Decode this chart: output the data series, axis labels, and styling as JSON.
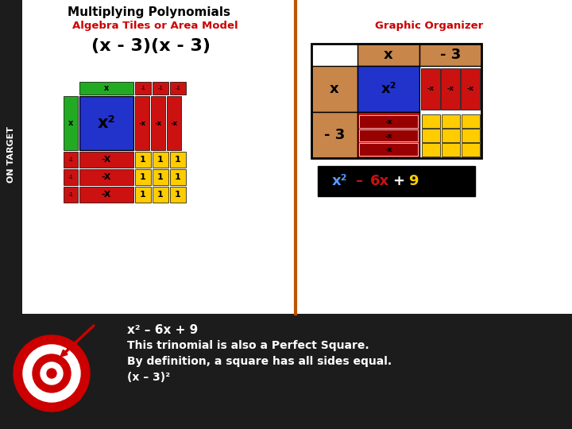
{
  "bg_color": "#1c1c1c",
  "white_area_color": "#ffffff",
  "title": "Multiplying Polynomials",
  "subtitle_left": "Algebra Tiles or Area Model",
  "subtitle_right": "Graphic Organizer",
  "expression": "(x - 3)(x - 3)",
  "bottom_text_line1": "x² – 6x + 9",
  "bottom_text_line2": "This trinomial is also a Perfect Square.",
  "bottom_text_line3": "By definition, a square has all sides equal.",
  "bottom_text_line4": "(x – 3)²",
  "colors": {
    "green": "#22aa22",
    "blue": "#2233cc",
    "red": "#cc1111",
    "yellow": "#ffcc00",
    "brown": "#c8864a",
    "black": "#000000",
    "white": "#ffffff",
    "dark_red": "#990000"
  },
  "divider_color": "#bb5500",
  "title_color": "#000000",
  "subtitle_left_color": "#cc0000",
  "subtitle_right_color": "#cc0000",
  "result_blue": "#5599ff",
  "result_red": "#cc1111",
  "result_yellow": "#ffcc00"
}
